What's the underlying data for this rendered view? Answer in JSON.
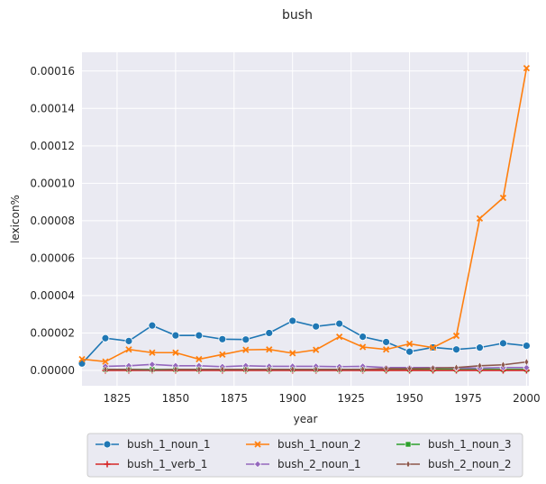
{
  "chart_data": {
    "type": "line",
    "title": "bush",
    "xlabel": "year",
    "ylabel": "lexicon%",
    "xlim": [
      1810,
      2001
    ],
    "ylim": [
      -8.2e-06,
      0.00017
    ],
    "x_ticks": [
      1825,
      1850,
      1875,
      1900,
      1925,
      1950,
      1975,
      2000
    ],
    "x_tick_labels": [
      "1825",
      "1850",
      "1875",
      "1900",
      "1925",
      "1950",
      "1975",
      "2000"
    ],
    "y_ticks": [
      0.0,
      2e-05,
      4e-05,
      6e-05,
      8e-05,
      0.0001,
      0.00012,
      0.00014,
      0.00016
    ],
    "y_tick_labels": [
      "0.00000",
      "0.00002",
      "0.00004",
      "0.00006",
      "0.00008",
      "0.00010",
      "0.00012",
      "0.00014",
      "0.00016"
    ],
    "grid": true,
    "legend_position": "bottom-center",
    "x": [
      1810,
      1820,
      1830,
      1840,
      1850,
      1860,
      1870,
      1880,
      1890,
      1900,
      1910,
      1920,
      1930,
      1940,
      1950,
      1960,
      1970,
      1980,
      1990,
      2000
    ],
    "series": [
      {
        "name": "bush_1_noun_1",
        "color": "#1f77b4",
        "marker": "circle",
        "values": [
          3.7e-06,
          1.72e-05,
          1.57e-05,
          2.4e-05,
          1.87e-05,
          1.87e-05,
          1.67e-05,
          1.65e-05,
          2e-05,
          2.65e-05,
          2.35e-05,
          2.5e-05,
          1.8e-05,
          1.52e-05,
          1e-05,
          1.23e-05,
          1.12e-05,
          1.22e-05,
          1.45e-05,
          1.32e-05
        ]
      },
      {
        "name": "bush_1_noun_2",
        "color": "#ff7f0e",
        "marker": "x",
        "values": [
          6e-06,
          4.7e-06,
          1.12e-05,
          9.5e-06,
          9.5e-06,
          6e-06,
          8.5e-06,
          1.1e-05,
          1.12e-05,
          9.2e-06,
          1.1e-05,
          1.8e-05,
          1.25e-05,
          1.12e-05,
          1.42e-05,
          1.22e-05,
          1.85e-05,
          8.12e-05,
          9.22e-05,
          0.0001615
        ]
      },
      {
        "name": "bush_1_noun_3",
        "color": "#2ca02c",
        "marker": "square",
        "values": [
          null,
          5e-07,
          5e-07,
          5e-07,
          5e-07,
          5e-07,
          5e-07,
          5e-07,
          5e-07,
          5e-07,
          5e-07,
          5e-07,
          5e-07,
          5e-07,
          5e-07,
          5e-07,
          5e-07,
          5e-07,
          5e-07,
          5e-07
        ]
      },
      {
        "name": "bush_1_verb_1",
        "color": "#d62728",
        "marker": "plus",
        "values": [
          null,
          0.0,
          0.0,
          0.0,
          0.0,
          0.0,
          0.0,
          0.0,
          0.0,
          0.0,
          0.0,
          0.0,
          0.0,
          0.0,
          0.0,
          0.0,
          0.0,
          0.0,
          0.0,
          0.0
        ]
      },
      {
        "name": "bush_2_noun_1",
        "color": "#9467bd",
        "marker": "diamond",
        "values": [
          null,
          2.2e-06,
          2.5e-06,
          3.2e-06,
          2.5e-06,
          2.5e-06,
          2e-06,
          2.5e-06,
          2.2e-06,
          2.2e-06,
          2.2e-06,
          2e-06,
          2.2e-06,
          1.5e-06,
          1.5e-06,
          1.5e-06,
          1.2e-06,
          1.2e-06,
          1.5e-06,
          1.5e-06
        ]
      },
      {
        "name": "bush_2_noun_2",
        "color": "#8c564b",
        "marker": "thin_diamond",
        "values": [
          null,
          5e-07,
          5e-07,
          2e-07,
          5e-07,
          5e-07,
          5e-07,
          5e-07,
          5e-07,
          5e-07,
          5e-07,
          5e-07,
          5e-07,
          1e-06,
          1e-06,
          1.2e-06,
          1.5e-06,
          2.5e-06,
          3e-06,
          4.5e-06
        ]
      }
    ]
  }
}
